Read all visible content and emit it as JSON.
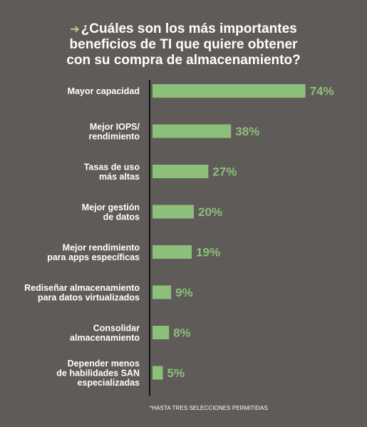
{
  "chart_data": {
    "type": "bar",
    "orientation": "horizontal",
    "title_lines": [
      "¿Cuáles son los más importantes",
      "beneficios de TI que quiere obtener",
      "con su compra de almacenamiento?"
    ],
    "categories": [
      [
        "Mayor capacidad"
      ],
      [
        "Mejor IOPS/",
        "rendimiento"
      ],
      [
        "Tasas de uso",
        "más altas"
      ],
      [
        "Mejor gestión",
        "de datos"
      ],
      [
        "Mejor rendimiento",
        "para apps específicas"
      ],
      [
        "Rediseñar almacenamiento",
        "para datos virtualizados"
      ],
      [
        "Consolidar",
        "almacenamiento"
      ],
      [
        "Depender menos",
        "de habilidades SAN",
        "especializadas"
      ]
    ],
    "values": [
      74,
      38,
      27,
      20,
      19,
      9,
      8,
      5
    ],
    "value_labels": [
      "74%",
      "38%",
      "27%",
      "20%",
      "19%",
      "9%",
      "8%",
      "5%"
    ],
    "footnote": "*HASTA TRES SELECCIONES PERMITIDAS",
    "bar_color": "#8cc07a",
    "value_label_color": "#8cc07a",
    "background_color": "#5f5b59",
    "title_color": "#ffffff",
    "axis_color": "#111111",
    "arrow_color": "#d9c77a",
    "arrow_icon": "arrow-right-icon",
    "grid": false,
    "legend": "none"
  }
}
